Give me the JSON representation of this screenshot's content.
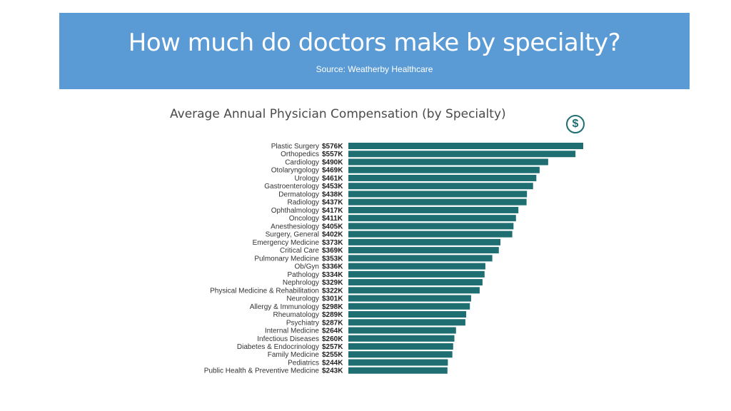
{
  "header": {
    "title": "How much do doctors make by specialty?",
    "source": "Source: Weatherby Healthcare"
  },
  "icons": {
    "dollar": "$"
  },
  "colors": {
    "banner": "#5b9bd5",
    "bar": "#1f6e71"
  },
  "chart_data": {
    "type": "bar",
    "orientation": "horizontal",
    "title": "Average Annual Physician Compensation (by Specialty)",
    "categories": [
      "Plastic Surgery",
      "Orthopedics",
      "Cardiology",
      "Otolaryngology",
      "Urology",
      "Gastroenterology",
      "Dermatology",
      "Radiology",
      "Ophthalmology",
      "Oncology",
      "Anesthesiology",
      "Surgery, General",
      "Emergency Medicine",
      "Critical Care",
      "Pulmonary Medicine",
      "Ob/Gyn",
      "Pathology",
      "Nephrology",
      "Physical Medicine & Rehabilitation",
      "Neurology",
      "Allergy & Immunology",
      "Rheumatology",
      "Psychiatry",
      "Internal Medicine",
      "Infectious Diseases",
      "Diabetes & Endocrinology",
      "Family Medicine",
      "Pediatrics",
      "Public Health & Preventive Medicine"
    ],
    "values": [
      576,
      557,
      490,
      469,
      461,
      453,
      438,
      437,
      417,
      411,
      405,
      402,
      373,
      369,
      353,
      336,
      334,
      329,
      322,
      301,
      298,
      289,
      287,
      264,
      260,
      257,
      255,
      244,
      243
    ],
    "value_labels": [
      "$576K",
      "$557K",
      "$490K",
      "$469K",
      "$461K",
      "$453K",
      "$438K",
      "$437K",
      "$417K",
      "$411K",
      "$405K",
      "$402K",
      "$373K",
      "$369K",
      "$353K",
      "$336K",
      "$334K",
      "$329K",
      "$322K",
      "$301K",
      "$298K",
      "$289K",
      "$287K",
      "$264K",
      "$260K",
      "$257K",
      "$255K",
      "$244K",
      "$243K"
    ],
    "unit": "thousand USD",
    "xlim": [
      0,
      576
    ],
    "grid": false,
    "legend": "none"
  }
}
